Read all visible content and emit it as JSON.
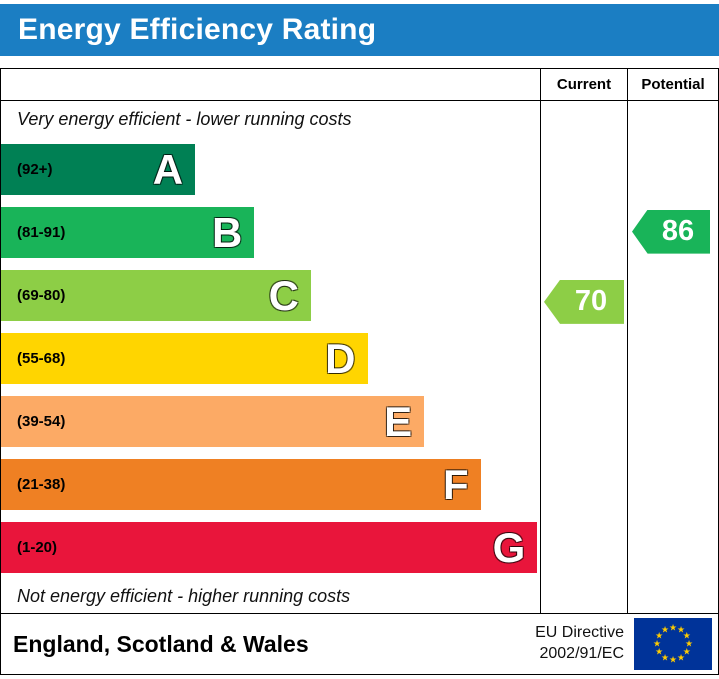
{
  "header": {
    "title": "Energy Efficiency Rating",
    "bg_color": "#1b7ec3"
  },
  "columns": {
    "current": "Current",
    "potential": "Potential"
  },
  "chart_data": {
    "type": "bar",
    "title": "Energy Efficiency Rating",
    "top_label": "Very energy efficient - lower running costs",
    "bottom_label": "Not energy efficient - higher running costs",
    "bands": [
      {
        "letter": "A",
        "range_label": "(92+)",
        "range": [
          92,
          100
        ],
        "color": "#008054",
        "width_pct": 36
      },
      {
        "letter": "B",
        "range_label": "(81-91)",
        "range": [
          81,
          91
        ],
        "color": "#19b459",
        "width_pct": 47
      },
      {
        "letter": "C",
        "range_label": "(69-80)",
        "range": [
          69,
          80
        ],
        "color": "#8dce46",
        "width_pct": 57.5
      },
      {
        "letter": "D",
        "range_label": "(55-68)",
        "range": [
          55,
          68
        ],
        "color": "#ffd500",
        "width_pct": 68
      },
      {
        "letter": "E",
        "range_label": "(39-54)",
        "range": [
          39,
          54
        ],
        "color": "#fcaa65",
        "width_pct": 78.5
      },
      {
        "letter": "F",
        "range_label": "(21-38)",
        "range": [
          21,
          38
        ],
        "color": "#ef8023",
        "width_pct": 89
      },
      {
        "letter": "G",
        "range_label": "(1-20)",
        "range": [
          1,
          20
        ],
        "color": "#e9153b",
        "width_pct": 99.5
      }
    ],
    "current": {
      "value": 70,
      "band": "C",
      "band_index": 2,
      "color": "#8dce46"
    },
    "potential": {
      "value": 86,
      "band": "B",
      "band_index": 1,
      "color": "#19b459"
    }
  },
  "footer": {
    "region": "England, Scotland & Wales",
    "directive": [
      "EU Directive",
      "2002/91/EC"
    ]
  }
}
